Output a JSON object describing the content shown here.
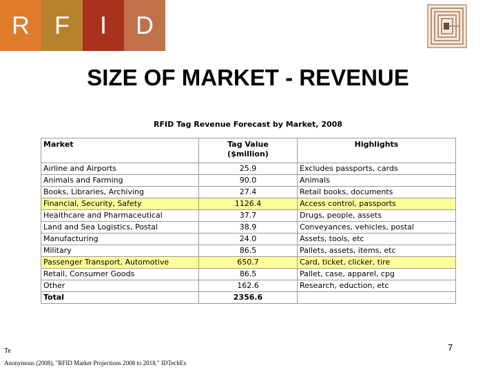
{
  "brand": {
    "letters": [
      "R",
      "F",
      "I",
      "D"
    ],
    "colors": [
      "#e07b2c",
      "#b5822e",
      "#a8321e",
      "#c0714a"
    ]
  },
  "slide": {
    "title": "SIZE OF MARKET - REVENUE",
    "page_number": "7",
    "footer_label": "Te",
    "citation": "Anonymous (2008), \"RFID Market Projections 2008 to 2018,\" IDTechEx"
  },
  "table": {
    "title": "RFID Tag Revenue Forecast by Market, 2008",
    "headers": {
      "market": "Market",
      "tag_value": "Tag Value\n($million)",
      "highlights": "Highlights"
    },
    "highlight_color": "#ffff99",
    "rows": [
      {
        "market": "Airline and Airports",
        "value": "25.9",
        "highlight": "Excludes passports, cards",
        "hl": false
      },
      {
        "market": "Animals and Farming",
        "value": "90.0",
        "highlight": "Animals",
        "hl": false
      },
      {
        "market": "Books, Libraries, Archiving",
        "value": "27.4",
        "highlight": "Retail books, documents",
        "hl": false
      },
      {
        "market": "Financial, Security, Safety",
        "value": "1126.4",
        "highlight": "Access control, passports",
        "hl": true
      },
      {
        "market": "Healthcare and Pharmaceutical",
        "value": "37.7",
        "highlight": "Drugs, people, assets",
        "hl": false
      },
      {
        "market": "Land and Sea Logistics, Postal",
        "value": "38.9",
        "highlight": "Conveyances, vehicles, postal",
        "hl": false
      },
      {
        "market": "Manufacturing",
        "value": "24.0",
        "highlight": "Assets, tools, etc",
        "hl": false
      },
      {
        "market": "Military",
        "value": "86.5",
        "highlight": "Pallets, assets, items, etc",
        "hl": false
      },
      {
        "market": "Passenger Transport, Automotive",
        "value": "650.7",
        "highlight": "Card, ticket, clicker, tire",
        "hl": true
      },
      {
        "market": "Retail, Consumer Goods",
        "value": "86.5",
        "highlight": "Pallet, case, apparel, cpg",
        "hl": false
      },
      {
        "market": "Other",
        "value": "162.6",
        "highlight": "Research, eduction, etc",
        "hl": false
      }
    ],
    "total": {
      "market": "Total",
      "value": "2356.6",
      "highlight": ""
    }
  }
}
